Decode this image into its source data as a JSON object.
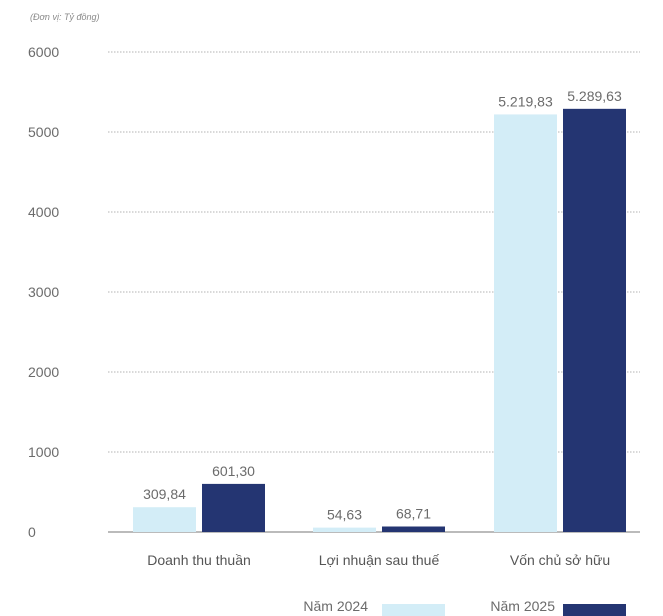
{
  "chart_data": {
    "type": "bar",
    "unit_note": "(Đơn vị: Tỷ đồng)",
    "categories": [
      "Doanh thu thuần",
      "Lợi nhuận sau thuế",
      "Vốn chủ sở hữu"
    ],
    "series": [
      {
        "name": "Năm 2024",
        "color": "#d3edf7",
        "values": [
          309.84,
          54.63,
          5219.83
        ],
        "labels": [
          "309,84",
          "54,63",
          "5.219,83"
        ]
      },
      {
        "name": "Năm 2025",
        "color": "#243572",
        "values": [
          601.3,
          68.71,
          5289.63
        ],
        "labels": [
          "601,30",
          "68,71",
          "5.289,63"
        ]
      }
    ],
    "yticks": [
      0,
      1000,
      2000,
      3000,
      4000,
      5000,
      6000
    ],
    "ylim": [
      0,
      6000
    ],
    "grid": true,
    "legend_position": "bottom-right"
  }
}
